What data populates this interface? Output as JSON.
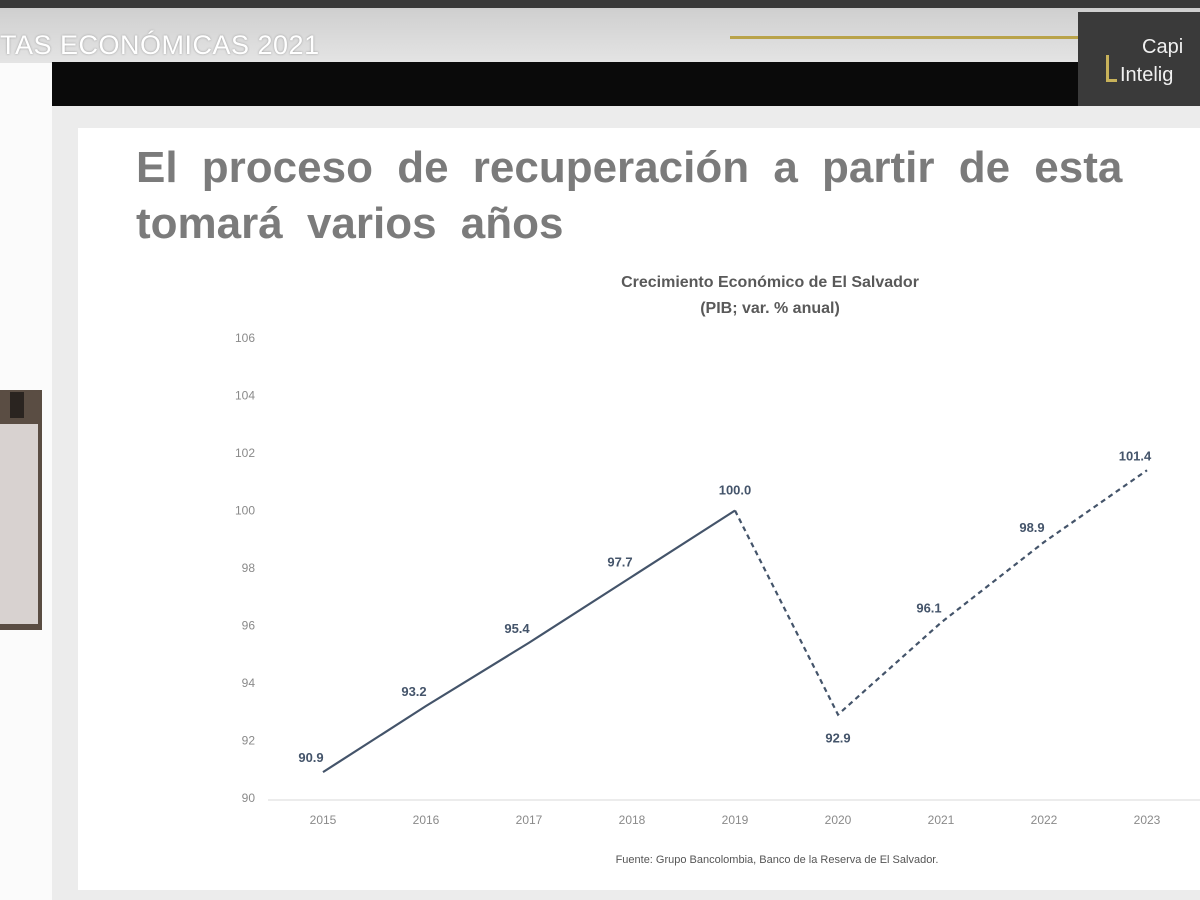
{
  "event": {
    "title": "TAS ECONÓMICAS 2021"
  },
  "logo": {
    "line1": "Capi",
    "line2": "Intelig"
  },
  "slide": {
    "title_line1": "El proceso de recuperación a partir de esta",
    "title_line2": "tomará varios años"
  },
  "chart_data": {
    "type": "line",
    "title": "Crecimiento Económico de El Salvador",
    "subtitle": "(PIB; var. % anual)",
    "x": [
      "2015",
      "2016",
      "2017",
      "2018",
      "2019",
      "2020",
      "2021",
      "2022",
      "2023"
    ],
    "ylim": [
      90,
      106
    ],
    "yticks": [
      "90",
      "92",
      "94",
      "96",
      "98",
      "100",
      "102",
      "104",
      "106"
    ],
    "series": [
      {
        "style": "solid",
        "color": "#44546a",
        "x": [
          "2015",
          "2016",
          "2017",
          "2018",
          "2019"
        ],
        "values": [
          90.9,
          93.2,
          95.4,
          97.7,
          100.0
        ],
        "labels": [
          "90.9",
          "93.2",
          "95.4",
          "97.7",
          "100.0"
        ]
      },
      {
        "style": "dashed",
        "color": "#44546a",
        "x": [
          "2019",
          "2020",
          "2021",
          "2022",
          "2023"
        ],
        "values": [
          100.0,
          92.9,
          96.1,
          98.9,
          101.4
        ],
        "labels": [
          "",
          "92.9",
          "96.1",
          "98.9",
          "101.4"
        ]
      }
    ],
    "grid": false,
    "source": "Fuente: Grupo Bancolombia, Banco de la Reserva de El Salvador."
  }
}
